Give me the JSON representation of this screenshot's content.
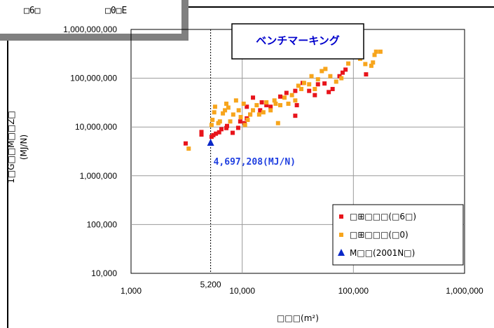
{
  "overlay": {
    "text_left": "□6□",
    "text_right": "□0□E"
  },
  "chart_data": {
    "type": "scatter",
    "title": "ベンチマーキング",
    "xlabel": "□□□(m²)",
    "ylabel": "1□G□□M□□Z□",
    "ylabel_unit": "(MJ/N)",
    "x_scale": "log",
    "y_scale": "log",
    "xlim": [
      1000,
      1000000
    ],
    "ylim": [
      10000,
      1000000000
    ],
    "x_ticks": [
      1000,
      10000,
      100000,
      1000000
    ],
    "x_tick_labels": [
      "1,000",
      "10,000",
      "100,000",
      "1,000,000"
    ],
    "y_ticks": [
      10000,
      100000,
      1000000,
      10000000,
      100000000,
      1000000000
    ],
    "y_tick_labels": [
      "10,000",
      "100,000",
      "1,000,000",
      "10,000,000",
      "100,000,000",
      "1,000,000,000"
    ],
    "reference_line": {
      "x": 5200,
      "label": "5,200"
    },
    "annotation": "4,697,208(MJ/N)",
    "legend_position": "bottom-right",
    "series": [
      {
        "name": "□⊞□□□(□6□)",
        "marker": "square",
        "color": "#e8141b",
        "points": [
          [
            3100,
            4600000
          ],
          [
            4300,
            7000000
          ],
          [
            4300,
            7900000
          ],
          [
            5300,
            6300000
          ],
          [
            5500,
            6800000
          ],
          [
            5800,
            7300000
          ],
          [
            6200,
            7800000
          ],
          [
            6500,
            9000000
          ],
          [
            7200,
            9500000
          ],
          [
            7300,
            10500000
          ],
          [
            8200,
            7600000
          ],
          [
            9200,
            9600000
          ],
          [
            9600,
            13000000
          ],
          [
            10500,
            12000000
          ],
          [
            11000,
            15000000
          ],
          [
            11000,
            26000000
          ],
          [
            11800,
            18000000
          ],
          [
            12500,
            40000000
          ],
          [
            14500,
            22000000
          ],
          [
            15000,
            32000000
          ],
          [
            16500,
            28000000
          ],
          [
            18000,
            26000000
          ],
          [
            22000,
            42000000
          ],
          [
            25000,
            50000000
          ],
          [
            30000,
            55000000
          ],
          [
            30000,
            17000000
          ],
          [
            31000,
            28000000
          ],
          [
            35000,
            80000000
          ],
          [
            40000,
            55000000
          ],
          [
            45000,
            45000000
          ],
          [
            48000,
            75000000
          ],
          [
            55000,
            78000000
          ],
          [
            60000,
            52000000
          ],
          [
            65000,
            60000000
          ],
          [
            75000,
            110000000
          ],
          [
            80000,
            130000000
          ],
          [
            85000,
            150000000
          ],
          [
            130000,
            120000000
          ]
        ]
      },
      {
        "name": "□⊞□□□(□0)",
        "marker": "square",
        "color": "#f7a51c",
        "points": [
          [
            3300,
            3600000
          ],
          [
            5300,
            11000000
          ],
          [
            5400,
            14000000
          ],
          [
            5600,
            20000000
          ],
          [
            5700,
            26000000
          ],
          [
            6100,
            12000000
          ],
          [
            6300,
            13000000
          ],
          [
            6700,
            19000000
          ],
          [
            7000,
            22000000
          ],
          [
            7200,
            30000000
          ],
          [
            7500,
            25000000
          ],
          [
            7800,
            13000000
          ],
          [
            8300,
            18000000
          ],
          [
            8800,
            35000000
          ],
          [
            9300,
            22000000
          ],
          [
            9700,
            16000000
          ],
          [
            10300,
            30000000
          ],
          [
            10600,
            11000000
          ],
          [
            11200,
            14000000
          ],
          [
            11800,
            18000000
          ],
          [
            12500,
            22000000
          ],
          [
            13500,
            28000000
          ],
          [
            14200,
            18000000
          ],
          [
            15500,
            20000000
          ],
          [
            16500,
            32000000
          ],
          [
            18000,
            22000000
          ],
          [
            19500,
            35000000
          ],
          [
            20000,
            30000000
          ],
          [
            21000,
            12000000
          ],
          [
            22000,
            28000000
          ],
          [
            24000,
            40000000
          ],
          [
            26000,
            30000000
          ],
          [
            28000,
            45000000
          ],
          [
            30000,
            35000000
          ],
          [
            32000,
            70000000
          ],
          [
            34000,
            60000000
          ],
          [
            36000,
            80000000
          ],
          [
            40000,
            75000000
          ],
          [
            42000,
            110000000
          ],
          [
            45000,
            60000000
          ],
          [
            48000,
            95000000
          ],
          [
            52000,
            140000000
          ],
          [
            56000,
            155000000
          ],
          [
            62000,
            110000000
          ],
          [
            70000,
            85000000
          ],
          [
            78000,
            100000000
          ],
          [
            90000,
            200000000
          ],
          [
            100000,
            300000000
          ],
          [
            115000,
            250000000
          ],
          [
            128000,
            195000000
          ],
          [
            145000,
            180000000
          ],
          [
            150000,
            210000000
          ],
          [
            155000,
            300000000
          ],
          [
            160000,
            350000000
          ],
          [
            175000,
            350000000
          ]
        ]
      },
      {
        "name": "M□□(2001N□)",
        "marker": "triangle",
        "color": "#0a28c8",
        "points": [
          [
            5200,
            4697208
          ]
        ]
      }
    ]
  }
}
